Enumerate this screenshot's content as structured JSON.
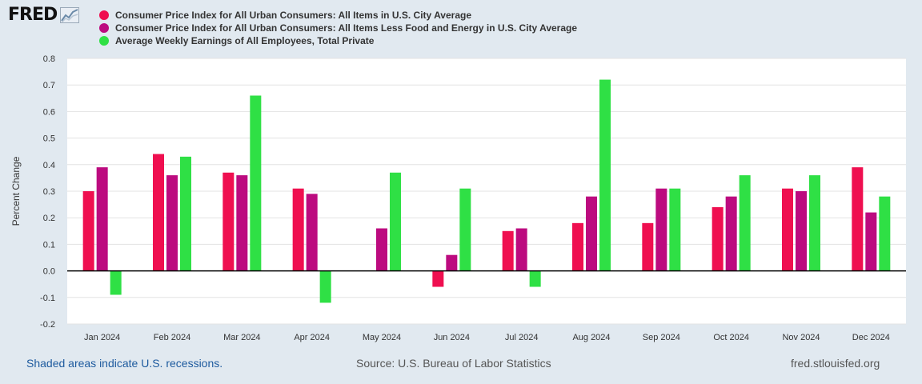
{
  "branding": {
    "logo_text": "FRED",
    "logo_icon": "chart-line-icon"
  },
  "footer": {
    "recession_note": "Shaded areas indicate U.S. recessions.",
    "source": "Source: U.S. Bureau of Labor Statistics",
    "site": "fred.stlouisfed.org"
  },
  "chart_data": {
    "type": "bar",
    "title": "",
    "xlabel": "",
    "ylabel": "Percent Change",
    "ylim": [
      -0.2,
      0.8
    ],
    "yticks": [
      -0.2,
      -0.1,
      0.0,
      0.1,
      0.2,
      0.3,
      0.4,
      0.5,
      0.6,
      0.7,
      0.8
    ],
    "ytick_labels": [
      "-0.2",
      "-0.1",
      "0.0",
      "0.1",
      "0.2",
      "0.3",
      "0.4",
      "0.5",
      "0.6",
      "0.7",
      "0.8"
    ],
    "grid": true,
    "legend_position": "top-left",
    "categories": [
      "Jan 2024",
      "Feb 2024",
      "Mar 2024",
      "Apr 2024",
      "May 2024",
      "Jun 2024",
      "Jul 2024",
      "Aug 2024",
      "Sep 2024",
      "Oct 2024",
      "Nov 2024",
      "Dec 2024"
    ],
    "series": [
      {
        "name": "Consumer Price Index for All Urban Consumers: All Items in U.S. City Average",
        "color": "#ef0f50",
        "values": [
          0.3,
          0.44,
          0.37,
          0.31,
          0.0,
          -0.06,
          0.15,
          0.18,
          0.18,
          0.24,
          0.31,
          0.39
        ]
      },
      {
        "name": "Consumer Price Index for All Urban Consumers: All Items Less Food and Energy in U.S. City Average",
        "color": "#bc0b7f",
        "values": [
          0.39,
          0.36,
          0.36,
          0.29,
          0.16,
          0.06,
          0.16,
          0.28,
          0.31,
          0.28,
          0.3,
          0.22
        ]
      },
      {
        "name": "Average Weekly Earnings of All Employees, Total Private",
        "color": "#2fe045",
        "values": [
          -0.09,
          0.43,
          0.66,
          -0.12,
          0.37,
          0.31,
          -0.06,
          0.72,
          0.31,
          0.36,
          0.36,
          0.28
        ]
      }
    ]
  }
}
